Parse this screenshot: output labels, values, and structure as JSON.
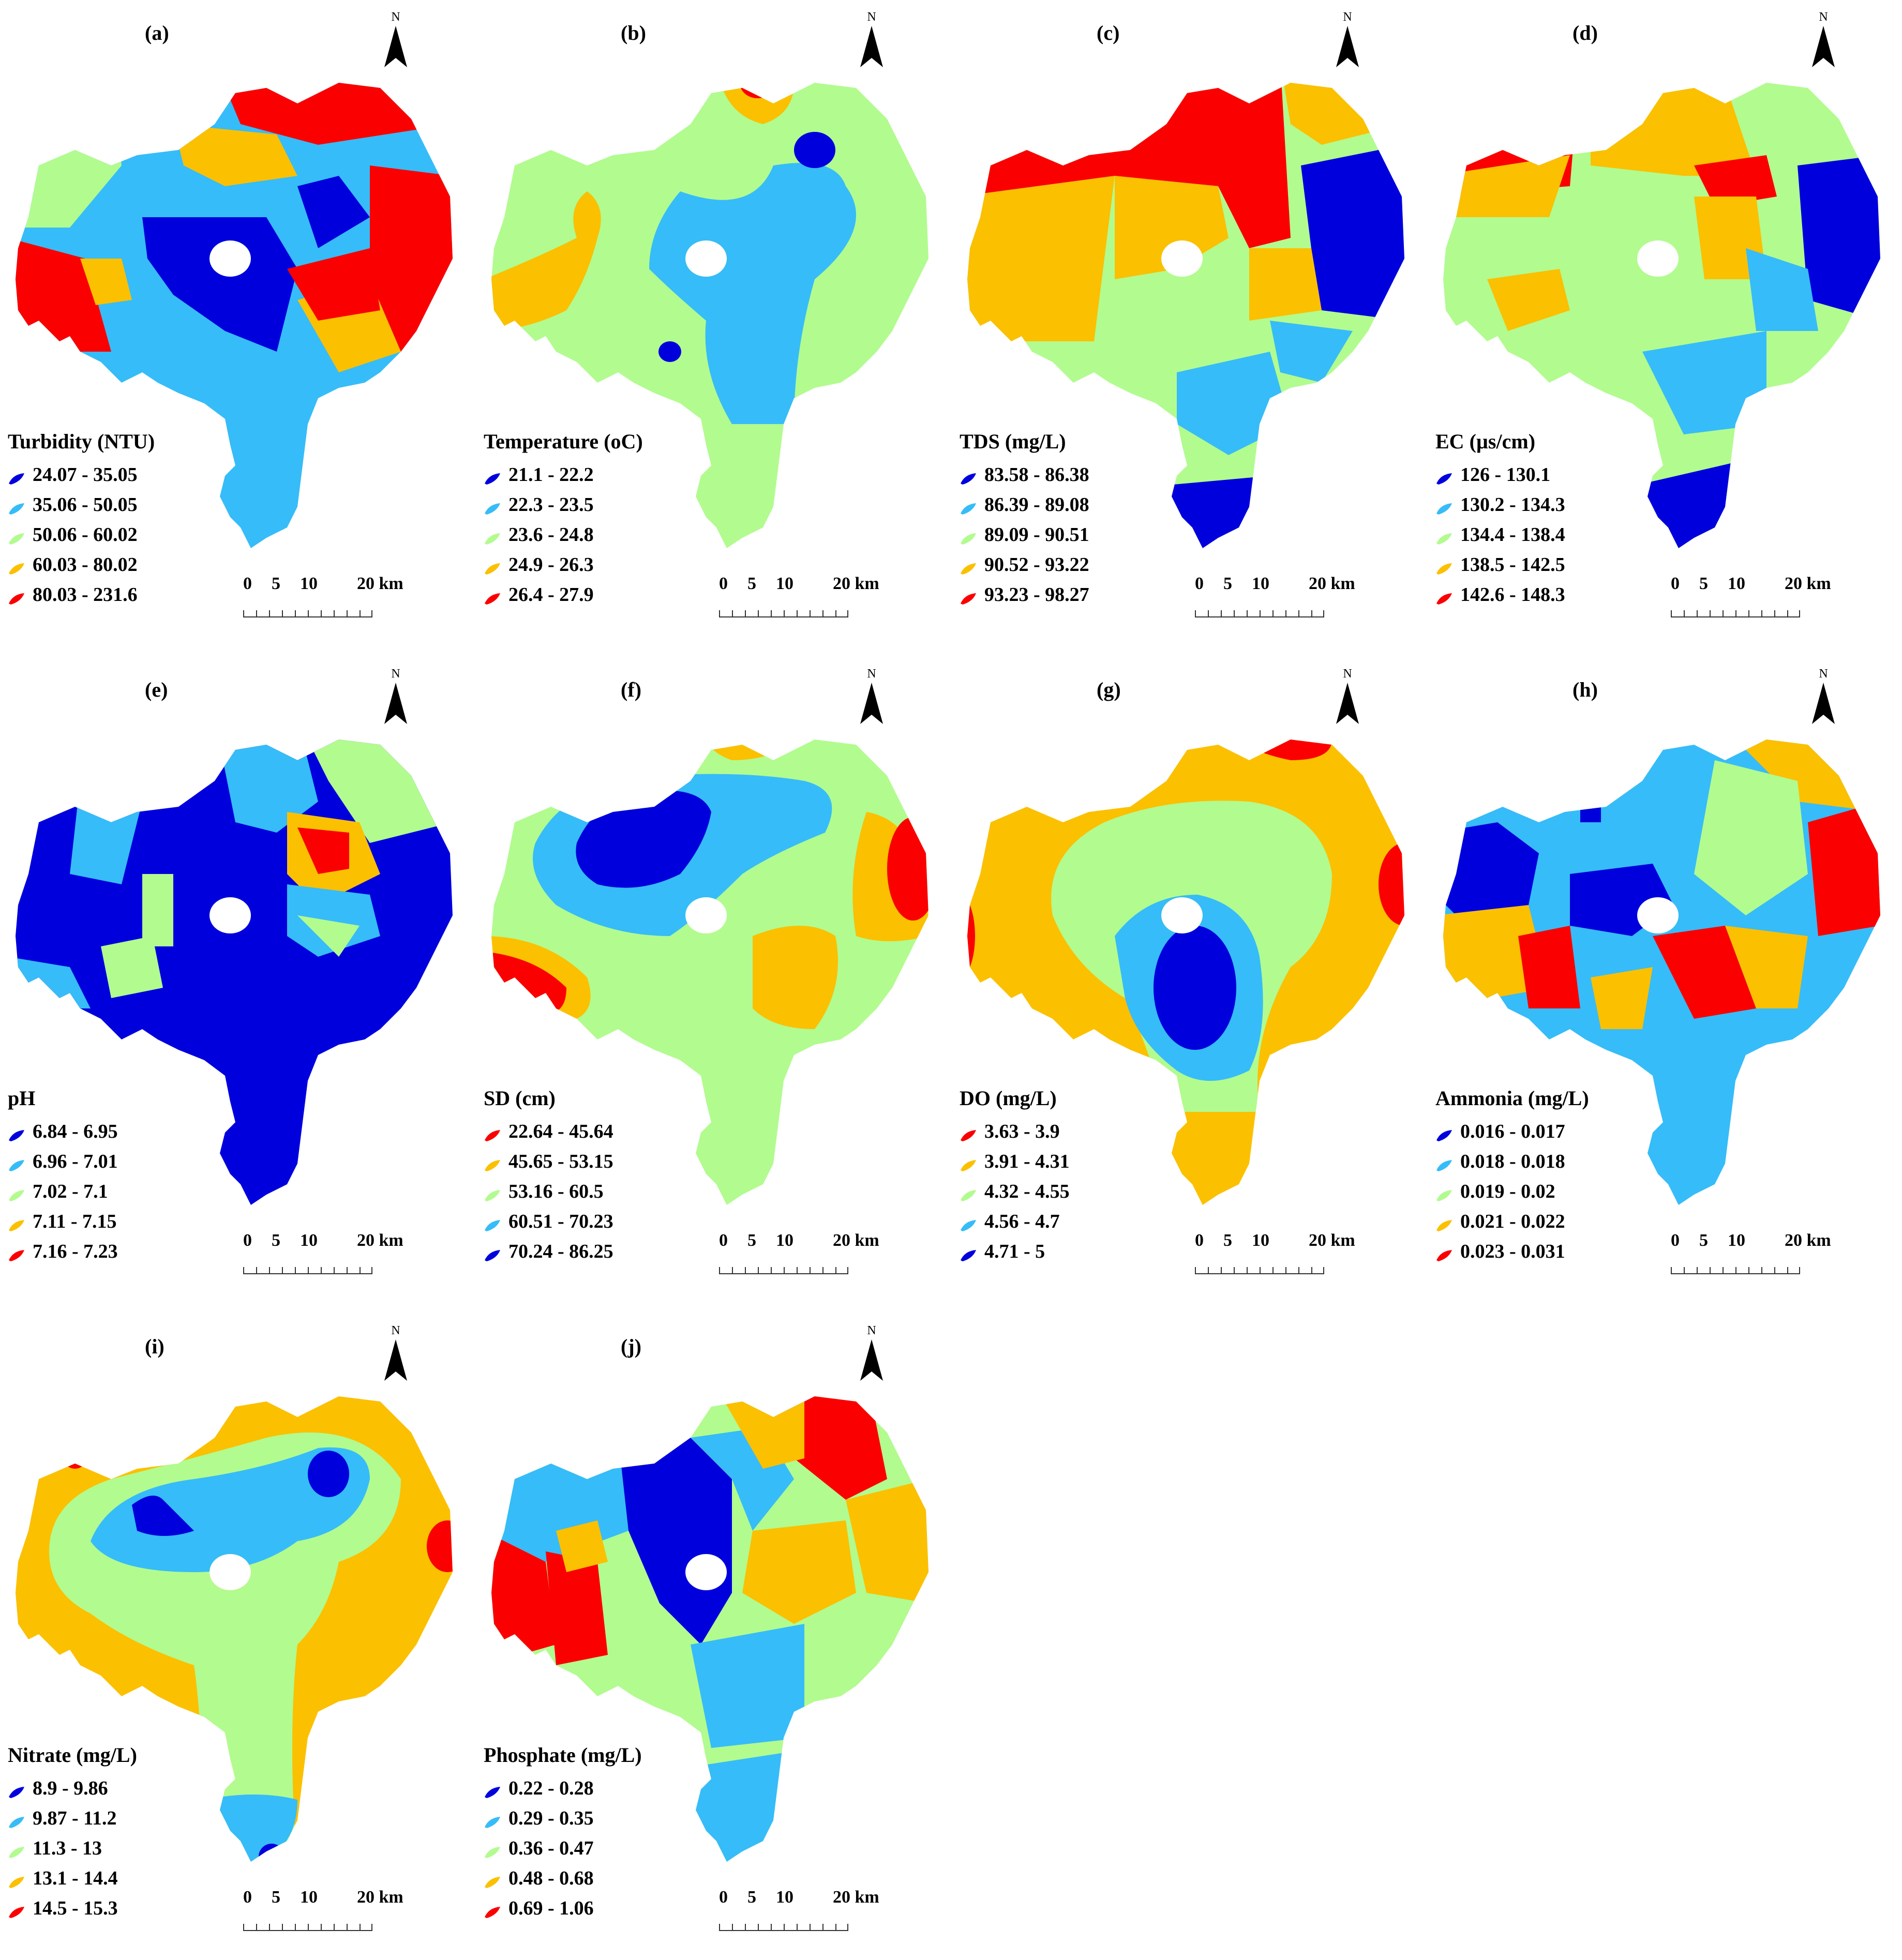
{
  "colors": {
    "class1": "#0000dd",
    "class2": "#36bcf8",
    "class3": "#b2fb8f",
    "class4": "#fbc000",
    "class5": "#fb0000"
  },
  "scale_bar": {
    "labels": [
      "0",
      "5",
      "10",
      "20 km"
    ]
  },
  "north_label": "N",
  "panels": [
    {
      "label": "(a)",
      "title": "Turbidity (NTU)",
      "classes": [
        "24.07 - 35.05",
        "35.06 - 50.05",
        "50.06 - 60.02",
        "60.03 - 80.02",
        "80.03 - 231.6"
      ],
      "symbol_order": [
        "class1",
        "class2",
        "class3",
        "class4",
        "class5"
      ]
    },
    {
      "label": "(b)",
      "title": "Temperature (oC)",
      "classes": [
        "21.1 - 22.2",
        "22.3 - 23.5",
        "23.6 - 24.8",
        "24.9 - 26.3",
        "26.4 - 27.9"
      ],
      "symbol_order": [
        "class1",
        "class2",
        "class3",
        "class4",
        "class5"
      ]
    },
    {
      "label": "(c)",
      "title": "TDS (mg/L)",
      "classes": [
        "83.58 - 86.38",
        "86.39 - 89.08",
        "89.09 - 90.51",
        "90.52 - 93.22",
        "93.23 - 98.27"
      ],
      "symbol_order": [
        "class1",
        "class2",
        "class3",
        "class4",
        "class5"
      ]
    },
    {
      "label": "(d)",
      "title": "EC (µs/cm)",
      "classes": [
        "126 - 130.1",
        "130.2 - 134.3",
        "134.4 - 138.4",
        "138.5 - 142.5",
        "142.6 - 148.3"
      ],
      "symbol_order": [
        "class1",
        "class2",
        "class3",
        "class4",
        "class5"
      ]
    },
    {
      "label": "(e)",
      "title": "pH",
      "classes": [
        "6.84 - 6.95",
        "6.96 - 7.01",
        "7.02 - 7.1",
        "7.11 - 7.15",
        "7.16 - 7.23"
      ],
      "symbol_order": [
        "class1",
        "class2",
        "class3",
        "class4",
        "class5"
      ]
    },
    {
      "label": "(f)",
      "title": "SD (cm)",
      "classes": [
        "22.64 - 45.64",
        "45.65 - 53.15",
        "53.16 - 60.5",
        "60.51 - 70.23",
        "70.24 - 86.25"
      ],
      "symbol_order": [
        "class5",
        "class4",
        "class3",
        "class2",
        "class1"
      ]
    },
    {
      "label": "(g)",
      "title": "DO (mg/L)",
      "classes": [
        "3.63 - 3.9",
        "3.91 - 4.31",
        "4.32 - 4.55",
        "4.56 - 4.7",
        "4.71 - 5"
      ],
      "symbol_order": [
        "class5",
        "class4",
        "class3",
        "class2",
        "class1"
      ]
    },
    {
      "label": "(h)",
      "title": "Ammonia (mg/L)",
      "classes": [
        "0.016 - 0.017",
        "0.018 - 0.018",
        "0.019 - 0.02",
        "0.021 - 0.022",
        "0.023 - 0.031"
      ],
      "symbol_order": [
        "class1",
        "class2",
        "class3",
        "class4",
        "class5"
      ]
    },
    {
      "label": "(i)",
      "title": "Nitrate (mg/L)",
      "classes": [
        "8.9 - 9.86",
        "9.87 - 11.2",
        "11.3 - 13",
        "13.1 - 14.4",
        "14.5 - 15.3"
      ],
      "symbol_order": [
        "class1",
        "class2",
        "class3",
        "class4",
        "class5"
      ]
    },
    {
      "label": "(j)",
      "title": "Phosphate (mg/L)",
      "classes": [
        "0.22 - 0.28",
        "0.29 - 0.35",
        "0.36 - 0.47",
        "0.48 - 0.68",
        "0.69 - 1.06"
      ],
      "symbol_order": [
        "class1",
        "class2",
        "class3",
        "class4",
        "class5"
      ]
    }
  ]
}
